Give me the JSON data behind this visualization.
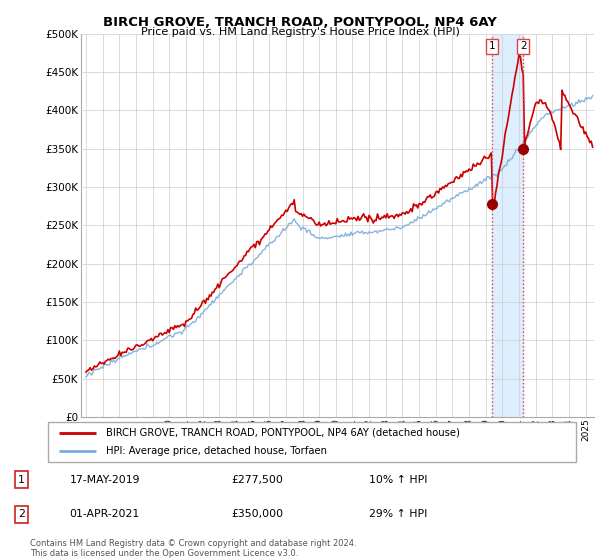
{
  "title": "BIRCH GROVE, TRANCH ROAD, PONTYPOOL, NP4 6AY",
  "subtitle": "Price paid vs. HM Land Registry's House Price Index (HPI)",
  "legend_line1": "BIRCH GROVE, TRANCH ROAD, PONTYPOOL, NP4 6AY (detached house)",
  "legend_line2": "HPI: Average price, detached house, Torfaen",
  "transaction1_date": "17-MAY-2019",
  "transaction1_price": "£277,500",
  "transaction1_hpi": "10% ↑ HPI",
  "transaction2_date": "01-APR-2021",
  "transaction2_price": "£350,000",
  "transaction2_hpi": "29% ↑ HPI",
  "footer": "Contains HM Land Registry data © Crown copyright and database right 2024.\nThis data is licensed under the Open Government Licence v3.0.",
  "ylim": [
    0,
    500000
  ],
  "yticks": [
    0,
    50000,
    100000,
    150000,
    200000,
    250000,
    300000,
    350000,
    400000,
    450000,
    500000
  ],
  "line1_color": "#cc0000",
  "line2_color": "#7aaddc",
  "shade_color": "#ddeeff",
  "vline_color": "#dd4444",
  "marker_color": "#990000",
  "background_color": "#ffffff",
  "grid_color": "#cccccc",
  "sale1_t": 2019.37,
  "sale2_t": 2021.25,
  "sale1_price": 277500,
  "sale2_price": 350000
}
